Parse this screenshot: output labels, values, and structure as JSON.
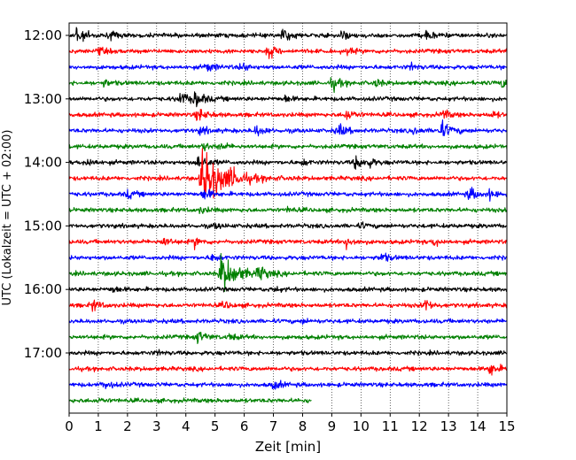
{
  "chart_data": {
    "type": "line",
    "title": "",
    "xlabel": "Zeit  [min]",
    "ylabel": "UTC (Lokalzeit = UTC + 02:00)",
    "xlim": [
      0,
      15
    ],
    "x_ticks": [
      0,
      1,
      2,
      3,
      4,
      5,
      6,
      7,
      8,
      9,
      10,
      11,
      12,
      13,
      14,
      15
    ],
    "x_tick_labels": [
      "0",
      "1",
      "2",
      "3",
      "4",
      "5",
      "6",
      "7",
      "8",
      "9",
      "10",
      "11",
      "12",
      "13",
      "14",
      "15"
    ],
    "y_tick_labels": [
      "12:00",
      "13:00",
      "14:00",
      "15:00",
      "16:00",
      "17:00"
    ],
    "y_tick_rows": [
      0,
      4,
      8,
      12,
      16,
      20
    ],
    "grid": {
      "x": true,
      "style": "dotted"
    },
    "legend": "none",
    "colors": [
      "#000000",
      "#ff0000",
      "#0000ff",
      "#008000"
    ],
    "rows": [
      {
        "start": "12:00",
        "color": "#000000",
        "end_min": 15,
        "events": [
          {
            "t": 0.25,
            "a": 1.2
          },
          {
            "t": 1.4,
            "a": 0.6
          },
          {
            "t": 7.3,
            "a": 1.0
          },
          {
            "t": 9.3,
            "a": 0.7
          },
          {
            "t": 12.2,
            "a": 0.8
          }
        ]
      },
      {
        "start": "12:15",
        "color": "#ff0000",
        "end_min": 15,
        "events": [
          {
            "t": 1.0,
            "a": 0.5
          },
          {
            "t": 6.8,
            "a": 1.0
          },
          {
            "t": 9.5,
            "a": 0.5
          }
        ]
      },
      {
        "start": "12:30",
        "color": "#0000ff",
        "end_min": 15,
        "events": [
          {
            "t": 4.7,
            "a": 0.8
          },
          {
            "t": 5.9,
            "a": 0.7
          },
          {
            "t": 11.7,
            "a": 0.5
          }
        ]
      },
      {
        "start": "12:45",
        "color": "#008000",
        "end_min": 15,
        "events": [
          {
            "t": 1.2,
            "a": 0.5
          },
          {
            "t": 9.0,
            "a": 1.0
          },
          {
            "t": 10.5,
            "a": 0.6
          },
          {
            "t": 14.8,
            "a": 0.7
          }
        ]
      },
      {
        "start": "13:00",
        "color": "#000000",
        "end_min": 15,
        "events": [
          {
            "t": 3.8,
            "a": 1.0
          },
          {
            "t": 4.3,
            "a": 1.2
          },
          {
            "t": 7.4,
            "a": 0.5
          }
        ]
      },
      {
        "start": "13:15",
        "color": "#ff0000",
        "end_min": 15,
        "events": [
          {
            "t": 4.4,
            "a": 1.0
          },
          {
            "t": 9.5,
            "a": 0.9
          },
          {
            "t": 12.8,
            "a": 0.7
          },
          {
            "t": 14.5,
            "a": 0.5
          }
        ]
      },
      {
        "start": "13:30",
        "color": "#0000ff",
        "end_min": 15,
        "events": [
          {
            "t": 4.5,
            "a": 0.6
          },
          {
            "t": 6.4,
            "a": 0.9
          },
          {
            "t": 9.2,
            "a": 1.0
          },
          {
            "t": 11.8,
            "a": 0.6
          },
          {
            "t": 12.7,
            "a": 1.4
          }
        ]
      },
      {
        "start": "13:45",
        "color": "#008000",
        "end_min": 15,
        "events": [
          {
            "t": 4.6,
            "a": 0.6
          },
          {
            "t": 5.2,
            "a": 0.5
          }
        ]
      },
      {
        "start": "14:00",
        "color": "#000000",
        "end_min": 15,
        "events": [
          {
            "t": 0.6,
            "a": 0.7
          },
          {
            "t": 4.4,
            "a": 1.2
          },
          {
            "t": 8.0,
            "a": 0.5
          },
          {
            "t": 9.8,
            "a": 1.0
          },
          {
            "t": 10.2,
            "a": 0.7
          }
        ]
      },
      {
        "start": "14:15",
        "color": "#ff0000",
        "end_min": 15,
        "events": [
          {
            "t": 4.55,
            "a": 4.5
          },
          {
            "t": 5.6,
            "a": 0.8
          }
        ]
      },
      {
        "start": "14:30",
        "color": "#0000ff",
        "end_min": 15,
        "events": [
          {
            "t": 2.0,
            "a": 0.6
          },
          {
            "t": 4.6,
            "a": 0.9
          },
          {
            "t": 13.7,
            "a": 1.0
          },
          {
            "t": 14.4,
            "a": 0.6
          }
        ]
      },
      {
        "start": "14:45",
        "color": "#008000",
        "end_min": 15,
        "events": [
          {
            "t": 4.5,
            "a": 0.5
          },
          {
            "t": 7.5,
            "a": 0.4
          }
        ]
      },
      {
        "start": "15:00",
        "color": "#000000",
        "end_min": 15,
        "events": [
          {
            "t": 5.0,
            "a": 0.4
          },
          {
            "t": 10.0,
            "a": 0.4
          }
        ]
      },
      {
        "start": "15:15",
        "color": "#ff0000",
        "end_min": 15,
        "events": [
          {
            "t": 3.2,
            "a": 0.8
          },
          {
            "t": 4.3,
            "a": 0.7
          },
          {
            "t": 9.5,
            "a": 0.9
          },
          {
            "t": 12.5,
            "a": 0.6
          }
        ]
      },
      {
        "start": "15:30",
        "color": "#0000ff",
        "end_min": 15,
        "events": [
          {
            "t": 4.9,
            "a": 0.6
          },
          {
            "t": 10.7,
            "a": 0.7
          }
        ]
      },
      {
        "start": "15:45",
        "color": "#008000",
        "end_min": 15,
        "events": [
          {
            "t": 5.2,
            "a": 3.0
          },
          {
            "t": 6.5,
            "a": 1.0
          }
        ]
      },
      {
        "start": "16:00",
        "color": "#000000",
        "end_min": 15,
        "events": [
          {
            "t": 1.5,
            "a": 0.5
          },
          {
            "t": 7.0,
            "a": 0.4
          }
        ]
      },
      {
        "start": "16:15",
        "color": "#ff0000",
        "end_min": 15,
        "events": [
          {
            "t": 0.8,
            "a": 0.8
          },
          {
            "t": 5.3,
            "a": 0.6
          },
          {
            "t": 12.2,
            "a": 0.9
          }
        ]
      },
      {
        "start": "16:30",
        "color": "#0000ff",
        "end_min": 15,
        "events": [
          {
            "t": 8.0,
            "a": 0.3
          }
        ]
      },
      {
        "start": "16:45",
        "color": "#008000",
        "end_min": 15,
        "events": [
          {
            "t": 4.4,
            "a": 0.9
          },
          {
            "t": 5.5,
            "a": 0.5
          }
        ]
      },
      {
        "start": "17:00",
        "color": "#000000",
        "end_min": 15,
        "events": [
          {
            "t": 3.0,
            "a": 0.3
          }
        ]
      },
      {
        "start": "17:15",
        "color": "#ff0000",
        "end_min": 15,
        "events": [
          {
            "t": 14.4,
            "a": 1.0
          }
        ]
      },
      {
        "start": "17:30",
        "color": "#0000ff",
        "end_min": 15,
        "events": [
          {
            "t": 1.2,
            "a": 0.7
          },
          {
            "t": 7.0,
            "a": 0.7
          }
        ]
      },
      {
        "start": "17:45",
        "color": "#008000",
        "end_min": 8.3,
        "events": [
          {
            "t": 1.0,
            "a": 0.3
          }
        ]
      }
    ]
  }
}
